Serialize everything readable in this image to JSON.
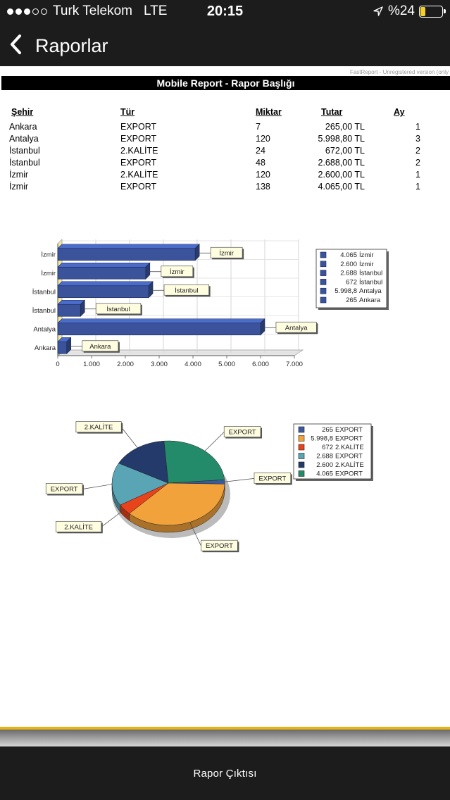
{
  "status_bar": {
    "carrier": "Turk Telekom",
    "network": "LTE",
    "time": "20:15",
    "battery_percent": "%24",
    "battery_level": 0.24
  },
  "nav": {
    "title": "Raporlar"
  },
  "report": {
    "watermark": "FastReport - Unregistered version (only",
    "title": "Mobile Report - Rapor Başlığı",
    "columns": [
      "Şehir",
      "Tür",
      "Miktar",
      "Tutar",
      "Ay"
    ],
    "rows": [
      [
        "Ankara",
        "EXPORT",
        "7",
        "265,00 TL",
        "1"
      ],
      [
        "Antalya",
        "EXPORT",
        "120",
        "5.998,80 TL",
        "3"
      ],
      [
        "İstanbul",
        "2.KALİTE",
        "24",
        "672,00 TL",
        "2"
      ],
      [
        "İstanbul",
        "EXPORT",
        "48",
        "2.688,00 TL",
        "2"
      ],
      [
        "İzmir",
        "2.KALİTE",
        "120",
        "2.600,00 TL",
        "1"
      ],
      [
        "İzmir",
        "EXPORT",
        "138",
        "4.065,00 TL",
        "1"
      ]
    ]
  },
  "chart_data": [
    {
      "type": "bar",
      "orientation": "horizontal",
      "categories": [
        "İzmir",
        "İzmir",
        "İstanbul",
        "İstanbul",
        "Antalya",
        "Ankara"
      ],
      "values": [
        4065,
        2600,
        2688,
        672,
        5998.8,
        265
      ],
      "data_labels": [
        "İzmir",
        "İzmir",
        "İstanbul",
        "İstanbul",
        "Antalya",
        "Ankara"
      ],
      "xlim": [
        0,
        7000
      ],
      "x_ticks": [
        "0",
        "1.000",
        "2.000",
        "3.000",
        "4.000",
        "5.000",
        "6.000",
        "7.000"
      ],
      "legend": [
        {
          "value": "4.065",
          "label": "İzmir"
        },
        {
          "value": "2.600",
          "label": "İzmir"
        },
        {
          "value": "2.688",
          "label": "İstanbul"
        },
        {
          "value": "672",
          "label": "İstanbul"
        },
        {
          "value": "5.998,8",
          "label": "Antalya"
        },
        {
          "value": "265",
          "label": "Ankara"
        }
      ],
      "legend_position": "right",
      "grid": true,
      "color": "#3a539b"
    },
    {
      "type": "pie",
      "values": [
        265,
        5998.8,
        672,
        2688,
        2600,
        4065
      ],
      "slice_labels": [
        "EXPORT",
        "EXPORT",
        "2.KALİTE",
        "EXPORT",
        "2.KALİTE",
        "EXPORT"
      ],
      "colors": [
        "#3a5a9c",
        "#f2a23a",
        "#e8431a",
        "#5aa5b5",
        "#233a6a",
        "#238a6a"
      ],
      "legend": [
        {
          "value": "265",
          "label": "EXPORT"
        },
        {
          "value": "5.998,8",
          "label": "EXPORT"
        },
        {
          "value": "672",
          "label": "2.KALİTE"
        },
        {
          "value": "2.688",
          "label": "EXPORT"
        },
        {
          "value": "2.600",
          "label": "2.KALİTE"
        },
        {
          "value": "4.065",
          "label": "EXPORT"
        }
      ],
      "legend_position": "right"
    }
  ],
  "bottom": {
    "button_label": "Rapor Çıktısı"
  }
}
